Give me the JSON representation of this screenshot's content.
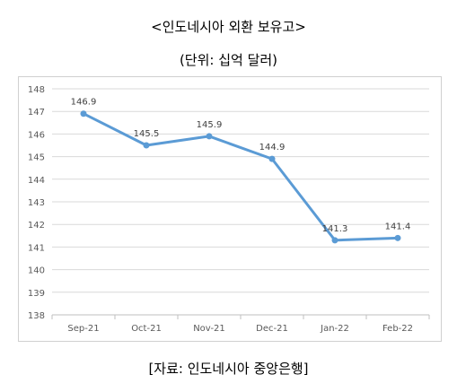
{
  "title": "<인도네시아 외환 보유고>",
  "subtitle": "(단위: 십억 달러)",
  "source": "[자료: 인도네시아 중앙은행]",
  "chart_data": {
    "type": "line",
    "categories": [
      "Sep-21",
      "Oct-21",
      "Nov-21",
      "Dec-21",
      "Jan-22",
      "Feb-22"
    ],
    "series": [
      {
        "values": [
          146.9,
          145.5,
          145.9,
          144.9,
          141.3,
          141.4
        ]
      }
    ],
    "data_labels": [
      "146.9",
      "145.5",
      "145.9",
      "144.9",
      "141.3",
      "141.4"
    ],
    "y_ticks": [
      "138",
      "139",
      "140",
      "141",
      "142",
      "143",
      "144",
      "145",
      "146",
      "147",
      "148"
    ],
    "ylim": [
      138,
      148
    ],
    "grid": true,
    "legend": "none",
    "line_color": "#5b9bd5",
    "grid_color": "#d9d9d9"
  }
}
